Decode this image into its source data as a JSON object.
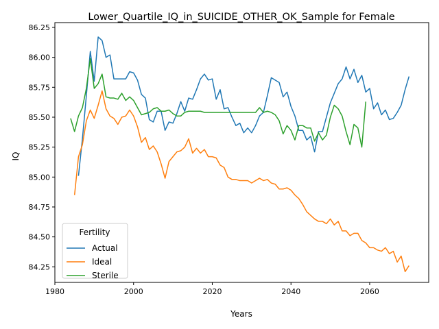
{
  "chart_data": {
    "type": "line",
    "title": "Lower_Quartile_IQ_in_SUICIDE_OTHER_OK_Sample for Female",
    "xlabel": "Years",
    "ylabel": "IQ",
    "xlim": [
      1980,
      2075
    ],
    "ylim": [
      84.12,
      86.29
    ],
    "xticks": [
      1980,
      2000,
      2020,
      2040,
      2060
    ],
    "yticks": [
      84.25,
      84.5,
      84.75,
      85.0,
      85.25,
      85.5,
      85.75,
      86.0,
      86.25
    ],
    "grid": false,
    "legend": {
      "title": "Fertility",
      "position": "lower-left"
    },
    "series": [
      {
        "name": "Actual",
        "color": "#1f77b4",
        "points": [
          [
            1986,
            85.01
          ],
          [
            1987,
            85.32
          ],
          [
            1988,
            85.68
          ],
          [
            1989,
            86.05
          ],
          [
            1990,
            85.8
          ],
          [
            1991,
            86.17
          ],
          [
            1992,
            86.14
          ],
          [
            1993,
            86.0
          ],
          [
            1994,
            86.02
          ],
          [
            1995,
            85.82
          ],
          [
            1996,
            85.82
          ],
          [
            1997,
            85.82
          ],
          [
            1998,
            85.82
          ],
          [
            1999,
            85.88
          ],
          [
            2000,
            85.87
          ],
          [
            2001,
            85.81
          ],
          [
            2002,
            85.69
          ],
          [
            2003,
            85.66
          ],
          [
            2004,
            85.48
          ],
          [
            2005,
            85.46
          ],
          [
            2006,
            85.55
          ],
          [
            2007,
            85.55
          ],
          [
            2008,
            85.39
          ],
          [
            2009,
            85.46
          ],
          [
            2010,
            85.45
          ],
          [
            2011,
            85.53
          ],
          [
            2012,
            85.63
          ],
          [
            2013,
            85.55
          ],
          [
            2014,
            85.66
          ],
          [
            2015,
            85.65
          ],
          [
            2016,
            85.73
          ],
          [
            2017,
            85.82
          ],
          [
            2018,
            85.86
          ],
          [
            2019,
            85.81
          ],
          [
            2020,
            85.82
          ],
          [
            2021,
            85.65
          ],
          [
            2022,
            85.73
          ],
          [
            2023,
            85.57
          ],
          [
            2024,
            85.58
          ],
          [
            2025,
            85.5
          ],
          [
            2026,
            85.43
          ],
          [
            2027,
            85.45
          ],
          [
            2028,
            85.37
          ],
          [
            2029,
            85.41
          ],
          [
            2030,
            85.37
          ],
          [
            2031,
            85.43
          ],
          [
            2032,
            85.51
          ],
          [
            2033,
            85.54
          ],
          [
            2034,
            85.68
          ],
          [
            2035,
            85.83
          ],
          [
            2036,
            85.81
          ],
          [
            2037,
            85.79
          ],
          [
            2038,
            85.67
          ],
          [
            2039,
            85.71
          ],
          [
            2040,
            85.59
          ],
          [
            2041,
            85.51
          ],
          [
            2042,
            85.39
          ],
          [
            2043,
            85.39
          ],
          [
            2044,
            85.31
          ],
          [
            2045,
            85.34
          ],
          [
            2046,
            85.21
          ],
          [
            2047,
            85.38
          ],
          [
            2048,
            85.38
          ],
          [
            2049,
            85.5
          ],
          [
            2050,
            85.62
          ],
          [
            2051,
            85.7
          ],
          [
            2052,
            85.78
          ],
          [
            2053,
            85.82
          ],
          [
            2054,
            85.92
          ],
          [
            2055,
            85.82
          ],
          [
            2056,
            85.9
          ],
          [
            2057,
            85.79
          ],
          [
            2058,
            85.85
          ],
          [
            2059,
            85.71
          ],
          [
            2060,
            85.74
          ],
          [
            2061,
            85.57
          ],
          [
            2062,
            85.62
          ],
          [
            2063,
            85.52
          ],
          [
            2064,
            85.56
          ],
          [
            2065,
            85.48
          ],
          [
            2066,
            85.49
          ],
          [
            2067,
            85.54
          ],
          [
            2068,
            85.6
          ],
          [
            2069,
            85.73
          ],
          [
            2070,
            85.84
          ]
        ]
      },
      {
        "name": "Ideal",
        "color": "#ff7f0e",
        "points": [
          [
            1985,
            84.85
          ],
          [
            1986,
            85.17
          ],
          [
            1987,
            85.27
          ],
          [
            1988,
            85.47
          ],
          [
            1989,
            85.56
          ],
          [
            1990,
            85.49
          ],
          [
            1991,
            85.6
          ],
          [
            1992,
            85.72
          ],
          [
            1993,
            85.57
          ],
          [
            1994,
            85.51
          ],
          [
            1995,
            85.49
          ],
          [
            1996,
            85.44
          ],
          [
            1997,
            85.5
          ],
          [
            1998,
            85.51
          ],
          [
            1999,
            85.56
          ],
          [
            2000,
            85.51
          ],
          [
            2001,
            85.42
          ],
          [
            2002,
            85.29
          ],
          [
            2003,
            85.33
          ],
          [
            2004,
            85.23
          ],
          [
            2005,
            85.26
          ],
          [
            2006,
            85.21
          ],
          [
            2007,
            85.11
          ],
          [
            2008,
            84.99
          ],
          [
            2009,
            85.13
          ],
          [
            2010,
            85.17
          ],
          [
            2011,
            85.21
          ],
          [
            2012,
            85.22
          ],
          [
            2013,
            85.25
          ],
          [
            2014,
            85.32
          ],
          [
            2015,
            85.2
          ],
          [
            2016,
            85.24
          ],
          [
            2017,
            85.2
          ],
          [
            2018,
            85.23
          ],
          [
            2019,
            85.17
          ],
          [
            2020,
            85.17
          ],
          [
            2021,
            85.16
          ],
          [
            2022,
            85.1
          ],
          [
            2023,
            85.08
          ],
          [
            2024,
            85.0
          ],
          [
            2025,
            84.98
          ],
          [
            2026,
            84.98
          ],
          [
            2027,
            84.97
          ],
          [
            2028,
            84.97
          ],
          [
            2029,
            84.97
          ],
          [
            2030,
            84.95
          ],
          [
            2031,
            84.97
          ],
          [
            2032,
            84.99
          ],
          [
            2033,
            84.97
          ],
          [
            2034,
            84.98
          ],
          [
            2035,
            84.95
          ],
          [
            2036,
            84.94
          ],
          [
            2037,
            84.9
          ],
          [
            2038,
            84.9
          ],
          [
            2039,
            84.91
          ],
          [
            2040,
            84.89
          ],
          [
            2041,
            84.85
          ],
          [
            2042,
            84.82
          ],
          [
            2043,
            84.77
          ],
          [
            2044,
            84.71
          ],
          [
            2045,
            84.68
          ],
          [
            2046,
            84.65
          ],
          [
            2047,
            84.63
          ],
          [
            2048,
            84.63
          ],
          [
            2049,
            84.61
          ],
          [
            2050,
            84.65
          ],
          [
            2051,
            84.6
          ],
          [
            2052,
            84.63
          ],
          [
            2053,
            84.55
          ],
          [
            2054,
            84.55
          ],
          [
            2055,
            84.51
          ],
          [
            2056,
            84.53
          ],
          [
            2057,
            84.53
          ],
          [
            2058,
            84.47
          ],
          [
            2059,
            84.45
          ],
          [
            2060,
            84.41
          ],
          [
            2061,
            84.41
          ],
          [
            2062,
            84.39
          ],
          [
            2063,
            84.38
          ],
          [
            2064,
            84.41
          ],
          [
            2065,
            84.36
          ],
          [
            2066,
            84.38
          ],
          [
            2067,
            84.29
          ],
          [
            2068,
            84.34
          ],
          [
            2069,
            84.21
          ],
          [
            2070,
            84.26
          ]
        ]
      },
      {
        "name": "Sterile",
        "color": "#2ca02c",
        "points": [
          [
            1984,
            85.49
          ],
          [
            1985,
            85.38
          ],
          [
            1986,
            85.51
          ],
          [
            1987,
            85.58
          ],
          [
            1988,
            85.74
          ],
          [
            1989,
            85.99
          ],
          [
            1990,
            85.74
          ],
          [
            1991,
            85.78
          ],
          [
            1992,
            85.86
          ],
          [
            1993,
            85.67
          ],
          [
            1994,
            85.66
          ],
          [
            1995,
            85.66
          ],
          [
            1996,
            85.65
          ],
          [
            1997,
            85.7
          ],
          [
            1998,
            85.64
          ],
          [
            1999,
            85.67
          ],
          [
            2000,
            85.64
          ],
          [
            2001,
            85.58
          ],
          [
            2002,
            85.52
          ],
          [
            2003,
            85.53
          ],
          [
            2004,
            85.54
          ],
          [
            2005,
            85.57
          ],
          [
            2006,
            85.58
          ],
          [
            2007,
            85.55
          ],
          [
            2008,
            85.55
          ],
          [
            2009,
            85.56
          ],
          [
            2010,
            85.53
          ],
          [
            2011,
            85.51
          ],
          [
            2012,
            85.51
          ],
          [
            2013,
            85.54
          ],
          [
            2014,
            85.55
          ],
          [
            2015,
            85.55
          ],
          [
            2016,
            85.55
          ],
          [
            2017,
            85.55
          ],
          [
            2018,
            85.54
          ],
          [
            2019,
            85.54
          ],
          [
            2020,
            85.54
          ],
          [
            2021,
            85.54
          ],
          [
            2022,
            85.54
          ],
          [
            2023,
            85.54
          ],
          [
            2024,
            85.54
          ],
          [
            2025,
            85.54
          ],
          [
            2026,
            85.54
          ],
          [
            2027,
            85.54
          ],
          [
            2028,
            85.54
          ],
          [
            2029,
            85.54
          ],
          [
            2030,
            85.54
          ],
          [
            2031,
            85.54
          ],
          [
            2032,
            85.58
          ],
          [
            2033,
            85.54
          ],
          [
            2034,
            85.55
          ],
          [
            2035,
            85.54
          ],
          [
            2036,
            85.52
          ],
          [
            2037,
            85.47
          ],
          [
            2038,
            85.36
          ],
          [
            2039,
            85.43
          ],
          [
            2040,
            85.39
          ],
          [
            2041,
            85.31
          ],
          [
            2042,
            85.43
          ],
          [
            2043,
            85.43
          ],
          [
            2044,
            85.41
          ],
          [
            2045,
            85.41
          ],
          [
            2046,
            85.3
          ],
          [
            2047,
            85.37
          ],
          [
            2048,
            85.31
          ],
          [
            2049,
            85.35
          ],
          [
            2050,
            85.5
          ],
          [
            2051,
            85.6
          ],
          [
            2052,
            85.57
          ],
          [
            2053,
            85.51
          ],
          [
            2054,
            85.38
          ],
          [
            2055,
            85.27
          ],
          [
            2056,
            85.44
          ],
          [
            2057,
            85.41
          ],
          [
            2058,
            85.25
          ],
          [
            2059,
            85.63
          ]
        ]
      }
    ]
  }
}
